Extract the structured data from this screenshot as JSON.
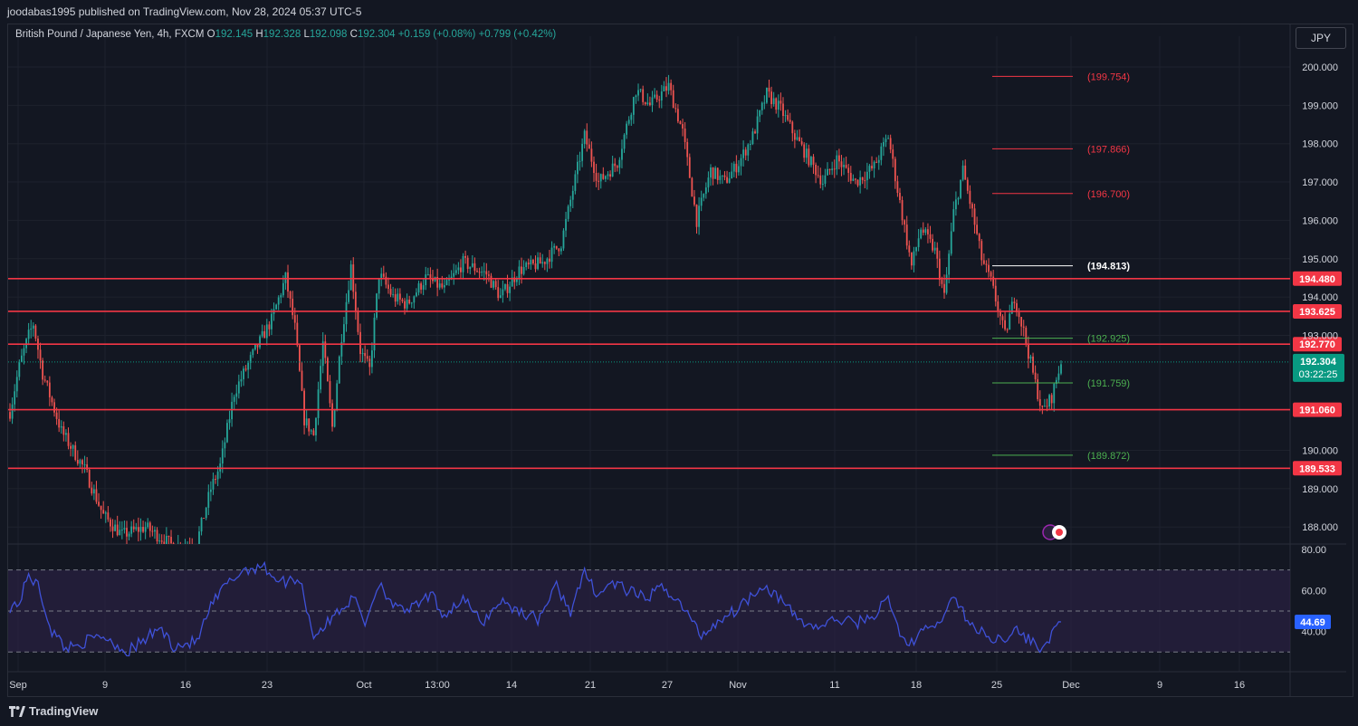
{
  "header": {
    "publisher_line": "joodabas1995 published on TradingView.com, Nov 28, 2024 05:37 UTC-5"
  },
  "symbol": {
    "name": "British Pound / Japanese Yen, 4h, FXCM",
    "o_label": "O",
    "o_value": "192.145",
    "h_label": "H",
    "h_value": "192.328",
    "l_label": "L",
    "l_value": "192.098",
    "c_label": "C",
    "c_value": "192.304",
    "change": "+0.159 (+0.08%)",
    "change2": "+0.799 (+0.42%)"
  },
  "currency_button": "JPY",
  "footer": {
    "brand": "TradingView"
  },
  "colors": {
    "background": "#131722",
    "up": "#26a69a",
    "down": "#ef5350",
    "level_line": "#f23645",
    "rsi_line": "#3f51d8",
    "rsi_band": "#2a2142",
    "last_price_bg": "#089981",
    "rsi_value_bg": "#2962ff"
  },
  "chart_data": [
    {
      "type": "candlestick",
      "symbol": "GBPJPY",
      "timeframe": "4h",
      "ylim": [
        187.6,
        200.8
      ],
      "y_ticks": [
        "200.000",
        "199.000",
        "198.000",
        "197.000",
        "196.000",
        "195.000",
        "194.000",
        "193.000",
        "190.000",
        "189.000",
        "188.000"
      ],
      "x_ticks": [
        "Sep",
        "9",
        "16",
        "23",
        "Oct",
        "13:00",
        "14",
        "21",
        "27",
        "Nov",
        "11",
        "18",
        "25",
        "Dec",
        "9",
        "16"
      ],
      "horizontal_levels": [
        {
          "value": 194.48,
          "label": "194.480"
        },
        {
          "value": 193.625,
          "label": "193.625"
        },
        {
          "value": 192.77,
          "label": "192.770"
        },
        {
          "value": 191.06,
          "label": "191.060"
        },
        {
          "value": 189.533,
          "label": "189.533"
        }
      ],
      "projection_levels": [
        {
          "value": 199.754,
          "label": "(199.754)",
          "color": "#f23645"
        },
        {
          "value": 197.866,
          "label": "(197.866)",
          "color": "#f23645"
        },
        {
          "value": 196.7,
          "label": "(196.700)",
          "color": "#f23645"
        },
        {
          "value": 194.813,
          "label": "(194.813)",
          "color": "#ffffff"
        },
        {
          "value": 192.925,
          "label": "(192.925)",
          "color": "#4caf50"
        },
        {
          "value": 191.759,
          "label": "(191.759)",
          "color": "#4caf50"
        },
        {
          "value": 189.872,
          "label": "(189.872)",
          "color": "#4caf50"
        }
      ],
      "last_price": {
        "value": 192.304,
        "label": "192.304",
        "countdown": "03:22:25"
      },
      "path_anchors": [
        [
          0,
          191.0
        ],
        [
          4,
          192.2
        ],
        [
          8,
          193.0
        ],
        [
          10,
          193.3
        ],
        [
          14,
          192.0
        ],
        [
          22,
          190.5
        ],
        [
          32,
          189.5
        ],
        [
          40,
          188.3
        ],
        [
          48,
          187.8
        ],
        [
          58,
          188.0
        ],
        [
          70,
          187.5
        ],
        [
          80,
          187.6
        ],
        [
          86,
          189.0
        ],
        [
          90,
          189.6
        ],
        [
          96,
          191.5
        ],
        [
          104,
          192.5
        ],
        [
          112,
          193.4
        ],
        [
          118,
          194.5
        ],
        [
          122,
          193.2
        ],
        [
          126,
          190.8
        ],
        [
          130,
          190.4
        ],
        [
          134,
          192.8
        ],
        [
          138,
          190.6
        ],
        [
          142,
          193.0
        ],
        [
          146,
          194.8
        ],
        [
          150,
          192.6
        ],
        [
          154,
          192.1
        ],
        [
          158,
          194.6
        ],
        [
          164,
          194.0
        ],
        [
          170,
          193.8
        ],
        [
          178,
          194.5
        ],
        [
          186,
          194.2
        ],
        [
          194,
          194.9
        ],
        [
          204,
          194.6
        ],
        [
          210,
          194.0
        ],
        [
          218,
          194.7
        ],
        [
          228,
          194.9
        ],
        [
          236,
          195.4
        ],
        [
          246,
          198.2
        ],
        [
          252,
          197.0
        ],
        [
          260,
          197.5
        ],
        [
          268,
          199.4
        ],
        [
          274,
          199.0
        ],
        [
          282,
          199.5
        ],
        [
          288,
          198.3
        ],
        [
          294,
          196.0
        ],
        [
          300,
          197.3
        ],
        [
          306,
          197.0
        ],
        [
          312,
          197.5
        ],
        [
          318,
          198.2
        ],
        [
          324,
          199.3
        ],
        [
          330,
          198.9
        ],
        [
          336,
          198.2
        ],
        [
          342,
          197.6
        ],
        [
          348,
          197.0
        ],
        [
          354,
          197.6
        ],
        [
          362,
          197.0
        ],
        [
          370,
          197.4
        ],
        [
          376,
          198.2
        ],
        [
          380,
          196.8
        ],
        [
          386,
          194.8
        ],
        [
          390,
          195.8
        ],
        [
          396,
          195.2
        ],
        [
          400,
          194.0
        ],
        [
          404,
          196.2
        ],
        [
          408,
          197.3
        ],
        [
          412,
          196.2
        ],
        [
          416,
          195.0
        ],
        [
          420,
          194.4
        ],
        [
          426,
          193.0
        ],
        [
          430,
          194.0
        ],
        [
          434,
          193.1
        ],
        [
          438,
          192.0
        ],
        [
          442,
          191.0
        ],
        [
          446,
          191.4
        ],
        [
          450,
          192.3
        ]
      ],
      "rsi": {
        "levels": [
          70,
          50,
          30
        ],
        "y_ticks": [
          "80.00",
          "60.00",
          "40.00"
        ],
        "last_value": "44.69",
        "anchors": [
          [
            0,
            52
          ],
          [
            4,
            54
          ],
          [
            8,
            68
          ],
          [
            12,
            62
          ],
          [
            18,
            40
          ],
          [
            24,
            32
          ],
          [
            32,
            35
          ],
          [
            40,
            38
          ],
          [
            50,
            30
          ],
          [
            58,
            36
          ],
          [
            64,
            42
          ],
          [
            70,
            33
          ],
          [
            80,
            35
          ],
          [
            86,
            52
          ],
          [
            92,
            62
          ],
          [
            100,
            70
          ],
          [
            108,
            72
          ],
          [
            116,
            64
          ],
          [
            124,
            66
          ],
          [
            130,
            38
          ],
          [
            136,
            44
          ],
          [
            142,
            52
          ],
          [
            148,
            56
          ],
          [
            152,
            44
          ],
          [
            158,
            64
          ],
          [
            166,
            50
          ],
          [
            174,
            52
          ],
          [
            180,
            58
          ],
          [
            186,
            48
          ],
          [
            194,
            56
          ],
          [
            202,
            44
          ],
          [
            210,
            55
          ],
          [
            218,
            50
          ],
          [
            226,
            46
          ],
          [
            234,
            62
          ],
          [
            240,
            50
          ],
          [
            246,
            68
          ],
          [
            252,
            58
          ],
          [
            258,
            64
          ],
          [
            264,
            60
          ],
          [
            272,
            56
          ],
          [
            280,
            62
          ],
          [
            288,
            52
          ],
          [
            296,
            38
          ],
          [
            304,
            46
          ],
          [
            310,
            50
          ],
          [
            316,
            56
          ],
          [
            322,
            63
          ],
          [
            328,
            58
          ],
          [
            334,
            50
          ],
          [
            340,
            44
          ],
          [
            346,
            42
          ],
          [
            354,
            46
          ],
          [
            362,
            44
          ],
          [
            370,
            48
          ],
          [
            376,
            56
          ],
          [
            382,
            36
          ],
          [
            388,
            34
          ],
          [
            392,
            44
          ],
          [
            396,
            40
          ],
          [
            400,
            50
          ],
          [
            404,
            56
          ],
          [
            408,
            50
          ],
          [
            412,
            42
          ],
          [
            418,
            38
          ],
          [
            424,
            36
          ],
          [
            430,
            41
          ],
          [
            436,
            36
          ],
          [
            442,
            32
          ],
          [
            446,
            38
          ],
          [
            450,
            44.69
          ]
        ]
      }
    }
  ]
}
